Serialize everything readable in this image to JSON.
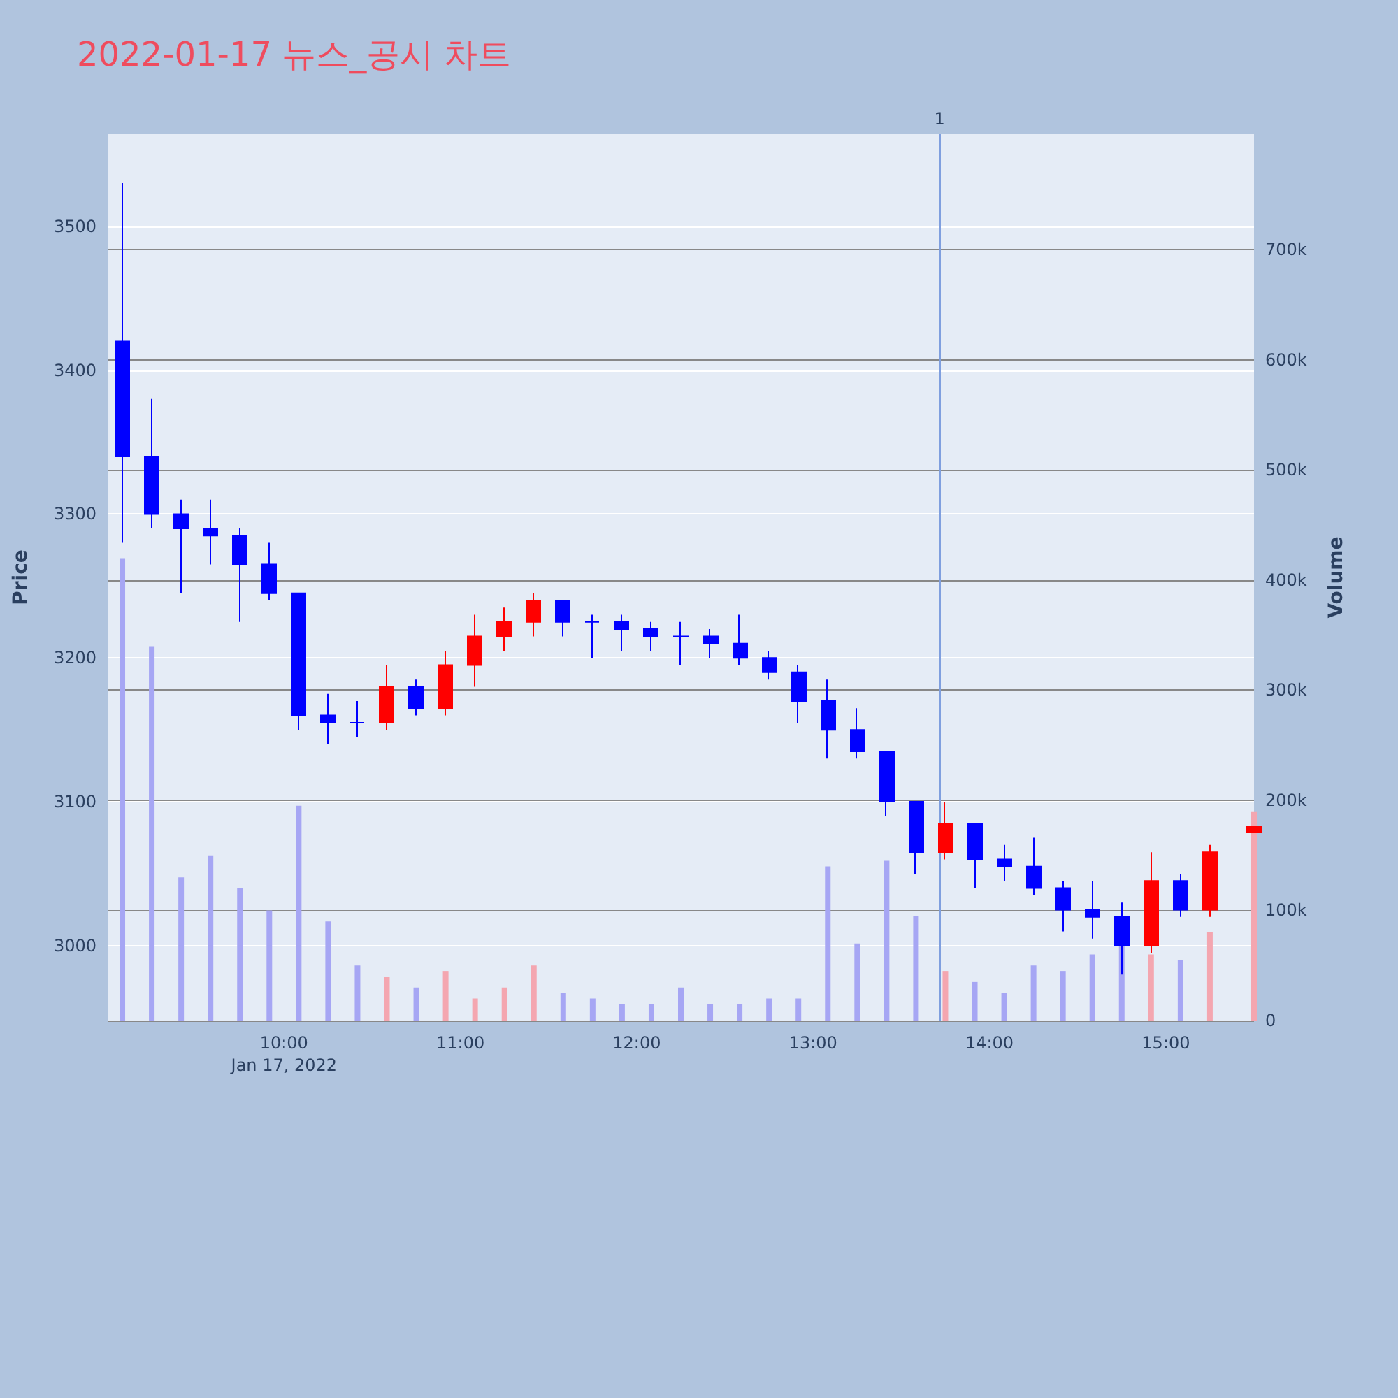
{
  "chart_data": {
    "type": "candlestick",
    "title": "2022-01-17 뉴스_공시 차트",
    "ylabel": "Price",
    "y2label": "Volume",
    "xlim": [
      "2022-01-17T09:00",
      "2022-01-17T15:30"
    ],
    "xticks": [
      {
        "value": "2022-01-17T10:00",
        "label": "10:00\nJan 17, 2022"
      },
      {
        "value": "2022-01-17T11:00",
        "label": "11:00"
      },
      {
        "value": "2022-01-17T12:00",
        "label": "12:00"
      },
      {
        "value": "2022-01-17T13:00",
        "label": "13:00"
      },
      {
        "value": "2022-01-17T14:00",
        "label": "14:00"
      },
      {
        "value": "2022-01-17T15:00",
        "label": "15:00"
      }
    ],
    "ylim": [
      2948,
      3564
    ],
    "yticks": [
      3000,
      3100,
      3200,
      3300,
      3400,
      3500
    ],
    "y2lim": [
      0,
      805000
    ],
    "y2ticks": [
      0,
      {
        "value": 100000,
        "label": "100k"
      },
      {
        "value": 200000,
        "label": "200k"
      },
      {
        "value": 300000,
        "label": "300k"
      },
      {
        "value": 400000,
        "label": "400k"
      },
      {
        "value": 500000,
        "label": "500k"
      },
      {
        "value": 600000,
        "label": "600k"
      },
      {
        "value": 700000,
        "label": "700k"
      }
    ],
    "grid": "y",
    "ref_lines": [
      {
        "axis": "x",
        "value": "2022-01-17T13:43",
        "label": "1",
        "color": "#7f9fdf"
      }
    ],
    "x": [
      "2022-01-17T09:05",
      "2022-01-17T09:15",
      "2022-01-17T09:25",
      "2022-01-17T09:35",
      "2022-01-17T09:45",
      "2022-01-17T09:55",
      "2022-01-17T10:05",
      "2022-01-17T10:15",
      "2022-01-17T10:25",
      "2022-01-17T10:35",
      "2022-01-17T10:45",
      "2022-01-17T10:55",
      "2022-01-17T11:05",
      "2022-01-17T11:15",
      "2022-01-17T11:25",
      "2022-01-17T11:35",
      "2022-01-17T11:45",
      "2022-01-17T11:55",
      "2022-01-17T12:05",
      "2022-01-17T12:15",
      "2022-01-17T12:25",
      "2022-01-17T12:35",
      "2022-01-17T12:45",
      "2022-01-17T12:55",
      "2022-01-17T13:05",
      "2022-01-17T13:15",
      "2022-01-17T13:25",
      "2022-01-17T13:35",
      "2022-01-17T13:45",
      "2022-01-17T13:55",
      "2022-01-17T14:05",
      "2022-01-17T14:15",
      "2022-01-17T14:25",
      "2022-01-17T14:35",
      "2022-01-17T14:45",
      "2022-01-17T14:55",
      "2022-01-17T15:05",
      "2022-01-17T15:15",
      "2022-01-17T15:30"
    ],
    "series": [
      {
        "ohlc": [
          [
            3420,
            3530,
            3280,
            3340
          ],
          [
            3340,
            3380,
            3290,
            3300
          ],
          [
            3300,
            3310,
            3245,
            3290
          ],
          [
            3290,
            3310,
            3265,
            3285
          ],
          [
            3285,
            3290,
            3225,
            3265
          ],
          [
            3265,
            3280,
            3240,
            3245
          ],
          [
            3245,
            3245,
            3150,
            3160
          ],
          [
            3160,
            3175,
            3140,
            3155
          ],
          [
            3155,
            3170,
            3145,
            3155
          ],
          [
            3155,
            3195,
            3150,
            3180
          ],
          [
            3180,
            3185,
            3160,
            3165
          ],
          [
            3165,
            3205,
            3160,
            3195
          ],
          [
            3195,
            3230,
            3180,
            3215
          ],
          [
            3215,
            3235,
            3205,
            3225
          ],
          [
            3225,
            3245,
            3215,
            3240
          ],
          [
            3240,
            3240,
            3215,
            3225
          ],
          [
            3225,
            3230,
            3200,
            3225
          ],
          [
            3225,
            3230,
            3205,
            3220
          ],
          [
            3220,
            3225,
            3205,
            3215
          ],
          [
            3215,
            3225,
            3195,
            3215
          ],
          [
            3215,
            3220,
            3200,
            3210
          ],
          [
            3210,
            3230,
            3195,
            3200
          ],
          [
            3200,
            3205,
            3185,
            3190
          ],
          [
            3190,
            3195,
            3155,
            3170
          ],
          [
            3170,
            3185,
            3130,
            3150
          ],
          [
            3150,
            3165,
            3130,
            3135
          ],
          [
            3135,
            3135,
            3090,
            3100
          ],
          [
            3100,
            3100,
            3050,
            3065
          ],
          [
            3065,
            3100,
            3060,
            3085
          ],
          [
            3085,
            3085,
            3040,
            3060
          ],
          [
            3060,
            3070,
            3045,
            3055
          ],
          [
            3055,
            3075,
            3035,
            3040
          ],
          [
            3040,
            3045,
            3010,
            3025
          ],
          [
            3025,
            3045,
            3005,
            3020
          ],
          [
            3020,
            3030,
            2980,
            3000
          ],
          [
            3000,
            3065,
            2995,
            3045
          ],
          [
            3045,
            3050,
            3020,
            3025
          ],
          [
            3025,
            3070,
            3020,
            3065
          ],
          [
            3079,
            3083,
            3079,
            3083
          ]
        ],
        "colors": [
          "#0000ff",
          "#0000ff",
          "#0000ff",
          "#0000ff",
          "#0000ff",
          "#0000ff",
          "#0000ff",
          "#0000ff",
          "#0000ff",
          "#ff0000",
          "#0000ff",
          "#ff0000",
          "#ff0000",
          "#ff0000",
          "#ff0000",
          "#0000ff",
          "#0000ff",
          "#0000ff",
          "#0000ff",
          "#0000ff",
          "#0000ff",
          "#0000ff",
          "#0000ff",
          "#0000ff",
          "#0000ff",
          "#0000ff",
          "#0000ff",
          "#0000ff",
          "#ff0000",
          "#0000ff",
          "#0000ff",
          "#0000ff",
          "#0000ff",
          "#0000ff",
          "#0000ff",
          "#ff0000",
          "#0000ff",
          "#ff0000",
          "#ff0000"
        ]
      },
      {
        "type": "bar",
        "axis": "y2",
        "values": [
          420000,
          340000,
          130000,
          150000,
          120000,
          100000,
          195000,
          90000,
          50000,
          40000,
          30000,
          45000,
          20000,
          30000,
          50000,
          25000,
          20000,
          15000,
          15000,
          30000,
          15000,
          15000,
          20000,
          20000,
          140000,
          70000,
          145000,
          95000,
          45000,
          35000,
          25000,
          50000,
          45000,
          60000,
          95000,
          60000,
          55000,
          80000,
          190000
        ],
        "colors": [
          "#a6a6f4",
          "#a6a6f4",
          "#a6a6f4",
          "#a6a6f4",
          "#a6a6f4",
          "#a6a6f4",
          "#a6a6f4",
          "#a6a6f4",
          "#a6a6f4",
          "#f4a6b0",
          "#a6a6f4",
          "#f4a6b0",
          "#f4a6b0",
          "#f4a6b0",
          "#f4a6b0",
          "#a6a6f4",
          "#a6a6f4",
          "#a6a6f4",
          "#a6a6f4",
          "#a6a6f4",
          "#a6a6f4",
          "#a6a6f4",
          "#a6a6f4",
          "#a6a6f4",
          "#a6a6f4",
          "#a6a6f4",
          "#a6a6f4",
          "#a6a6f4",
          "#f4a6b0",
          "#a6a6f4",
          "#a6a6f4",
          "#a6a6f4",
          "#a6a6f4",
          "#a6a6f4",
          "#a6a6f4",
          "#f4a6b0",
          "#a6a6f4",
          "#f4a6b0",
          "#f4a6b0"
        ]
      }
    ]
  }
}
